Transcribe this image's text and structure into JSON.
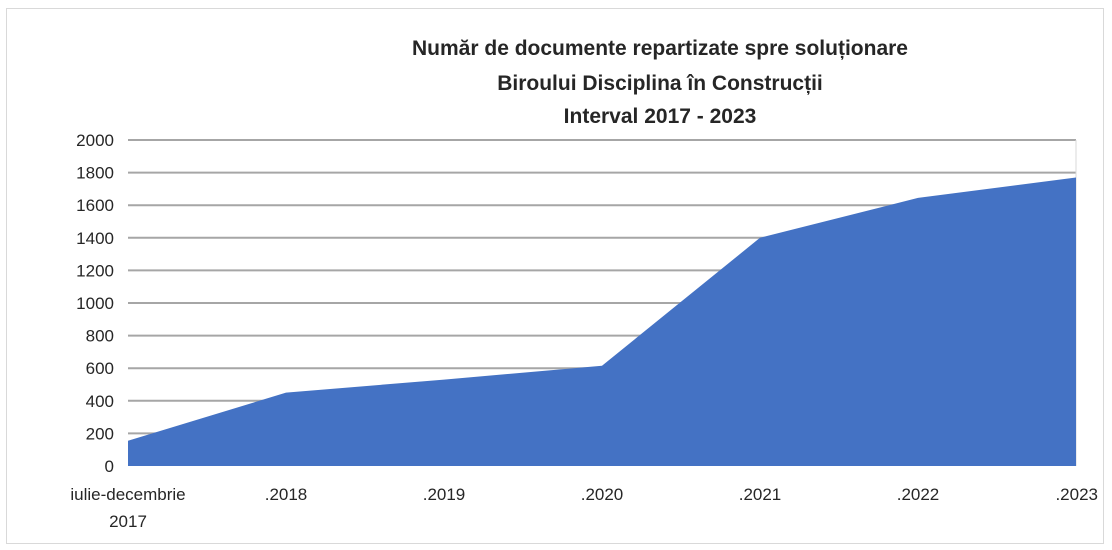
{
  "chart_data": {
    "type": "area",
    "title_lines": [
      "Număr de documente repartizate spre soluționare",
      "Biroului Disciplina în Construcții",
      "Interval 2017 - 2023"
    ],
    "categories": [
      [
        "iulie-decembrie",
        "2017"
      ],
      [
        ".2018"
      ],
      [
        ".2019"
      ],
      [
        ".2020"
      ],
      [
        ".2021"
      ],
      [
        ".2022"
      ],
      [
        ".2023"
      ]
    ],
    "values": [
      155,
      450,
      530,
      615,
      1400,
      1645,
      1770
    ],
    "ylim": [
      0,
      2000
    ],
    "yticks": [
      0,
      200,
      400,
      600,
      800,
      1000,
      1200,
      1400,
      1600,
      1800,
      2000
    ],
    "grid": true,
    "legend": "none",
    "fill_color": "#4472c4",
    "grid_color": "#a6a6a6"
  }
}
